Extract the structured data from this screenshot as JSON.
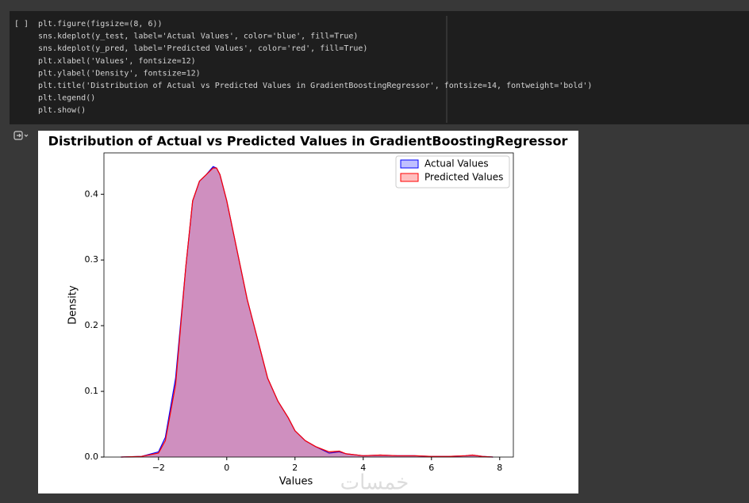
{
  "cell": {
    "run_marker": "[ ]",
    "code_lines": [
      "plt.figure(figsize=(8, 6))",
      "sns.kdeplot(y_test, label='Actual Values', color='blue', fill=True)",
      "sns.kdeplot(y_pred, label='Predicted Values', color='red', fill=True)",
      "plt.xlabel('Values', fontsize=12)",
      "plt.ylabel('Density', fontsize=12)",
      "plt.title('Distribution of Actual vs Predicted Values in GradientBoostingRegressor', fontsize=14, fontweight='bold')",
      "plt.legend()",
      "plt.show()"
    ]
  },
  "watermark": "خمسات",
  "chart_data": {
    "type": "kde",
    "title": "Distribution of Actual vs Predicted Values in GradientBoostingRegressor",
    "x_label": "Values",
    "y_label": "Density",
    "x": [
      -3.1,
      -2.5,
      -2.0,
      -1.8,
      -1.5,
      -1.2,
      -1.0,
      -0.8,
      -0.6,
      -0.4,
      -0.3,
      -0.2,
      0,
      0.2,
      0.4,
      0.6,
      0.8,
      1.0,
      1.2,
      1.5,
      1.8,
      2.0,
      2.3,
      2.6,
      3.0,
      3.3,
      3.5,
      4.0,
      4.5,
      5.0,
      5.5,
      6.0,
      6.5,
      7.0,
      7.2,
      7.5,
      7.8
    ],
    "series": [
      {
        "name": "Actual Values",
        "color": "blue",
        "values": [
          0,
          0.001,
          0.008,
          0.03,
          0.12,
          0.29,
          0.39,
          0.42,
          0.43,
          0.442,
          0.44,
          0.43,
          0.39,
          0.34,
          0.29,
          0.24,
          0.2,
          0.16,
          0.12,
          0.085,
          0.06,
          0.04,
          0.025,
          0.016,
          0.006,
          0.008,
          0.005,
          0.002,
          0.003,
          0.002,
          0.002,
          0.001,
          0.001,
          0.002,
          0.003,
          0.001,
          0
        ]
      },
      {
        "name": "Predicted Values",
        "color": "red",
        "values": [
          0,
          0.001,
          0.006,
          0.025,
          0.11,
          0.29,
          0.39,
          0.42,
          0.43,
          0.44,
          0.44,
          0.43,
          0.39,
          0.34,
          0.29,
          0.24,
          0.2,
          0.16,
          0.12,
          0.085,
          0.06,
          0.04,
          0.025,
          0.016,
          0.008,
          0.009,
          0.005,
          0.002,
          0.003,
          0.002,
          0.002,
          0.001,
          0.001,
          0.002,
          0.003,
          0.001,
          0
        ]
      }
    ],
    "xlim": [
      -3.6,
      8.4
    ],
    "ylim": [
      0,
      0.463
    ],
    "xticks": [
      {
        "value": -2,
        "label": "−2"
      },
      0,
      2,
      4,
      6,
      8
    ],
    "yticks": [
      {
        "value": 0,
        "label": "0.0"
      },
      0.1,
      0.2,
      0.3,
      0.4
    ],
    "legend": "upper right",
    "grid": false
  }
}
